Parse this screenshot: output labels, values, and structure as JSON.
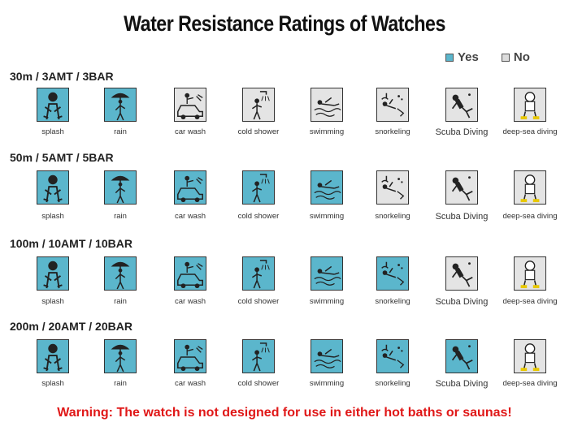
{
  "title": "Water Resistance Ratings of Watches",
  "legend": {
    "yes_label": "Yes",
    "no_label": "No",
    "yes_color": "#5bb6cc",
    "no_color": "#e4e4e4"
  },
  "activities": [
    {
      "label": "splash",
      "icon": "splash-figure-icon"
    },
    {
      "label": "rain",
      "icon": "umbrella-figure-icon"
    },
    {
      "label": "car wash",
      "icon": "car-wash-icon"
    },
    {
      "label": "cold shower",
      "icon": "shower-figure-icon"
    },
    {
      "label": "swimming",
      "icon": "swimmer-icon"
    },
    {
      "label": "snorkeling",
      "icon": "snorkeler-icon"
    },
    {
      "label": "Scuba Diving",
      "icon": "scuba-diver-icon"
    },
    {
      "label": "deep-sea diving",
      "icon": "deep-sea-diver-icon"
    }
  ],
  "ratings": [
    {
      "label": "30m / 3AMT / 3BAR",
      "suitable": [
        true,
        true,
        false,
        false,
        false,
        false,
        false,
        false
      ]
    },
    {
      "label": "50m / 5AMT / 5BAR",
      "suitable": [
        true,
        true,
        true,
        true,
        true,
        false,
        false,
        false
      ]
    },
    {
      "label": "100m / 10AMT / 10BAR",
      "suitable": [
        true,
        true,
        true,
        true,
        true,
        true,
        false,
        false
      ]
    },
    {
      "label": "200m / 20AMT / 20BAR",
      "suitable": [
        true,
        true,
        true,
        true,
        true,
        true,
        true,
        false
      ]
    }
  ],
  "warning": "Warning: The watch is not designed for use in either hot baths or saunas!"
}
